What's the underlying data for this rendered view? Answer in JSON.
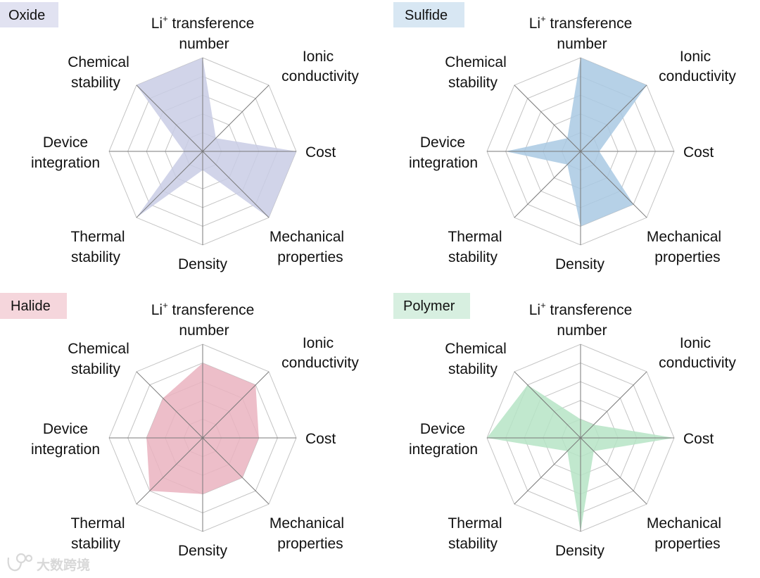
{
  "chart_data": [
    {
      "type": "radar",
      "title": "Oxide",
      "title_bg": "#e1e2f1",
      "fill": "#c9cce5",
      "axes": [
        "Li+ transference number",
        "Ionic conductivity",
        "Cost",
        "Mechanical properties",
        "Density",
        "Thermal stability",
        "Device integration",
        "Chemical stability"
      ],
      "values": [
        5,
        1,
        5,
        5,
        1,
        5,
        1,
        5
      ],
      "range": [
        0,
        5
      ]
    },
    {
      "type": "radar",
      "title": "Sulfide",
      "title_bg": "#d8e7f3",
      "fill": "#a9c9e3",
      "axes": [
        "Li+ transference number",
        "Ionic conductivity",
        "Cost",
        "Mechanical properties",
        "Density",
        "Thermal stability",
        "Device integration",
        "Chemical stability"
      ],
      "values": [
        5,
        5,
        1,
        4,
        4,
        1,
        4,
        1
      ],
      "range": [
        0,
        5
      ]
    },
    {
      "type": "radar",
      "title": "Halide",
      "title_bg": "#f5d6dc",
      "fill": "#eab3bf",
      "axes": [
        "Li+ transference number",
        "Ionic conductivity",
        "Cost",
        "Mechanical properties",
        "Density",
        "Thermal stability",
        "Device integration",
        "Chemical stability"
      ],
      "values": [
        4,
        4,
        3,
        3,
        3,
        4,
        3,
        3
      ],
      "range": [
        0,
        5
      ]
    },
    {
      "type": "radar",
      "title": "Polymer",
      "title_bg": "#d7efe0",
      "fill": "#b6e4c5",
      "axes": [
        "Li+ transference number",
        "Ionic conductivity",
        "Cost",
        "Mechanical properties",
        "Density",
        "Thermal stability",
        "Device integration",
        "Chemical stability"
      ],
      "values": [
        1,
        1,
        5,
        1,
        5,
        1,
        5,
        4
      ],
      "range": [
        0,
        5
      ]
    }
  ],
  "axis_labels": {
    "li": {
      "prefix": "Li",
      "sup": "+",
      "suffix": " transference",
      "line2": "number"
    },
    "ionic": [
      "Ionic",
      "conductivity"
    ],
    "cost": [
      "Cost"
    ],
    "mechanical": [
      "Mechanical",
      "properties"
    ],
    "density": [
      "Density"
    ],
    "thermal": [
      "Thermal",
      "stability"
    ],
    "device": [
      "Device",
      "integration"
    ],
    "chemical": [
      "Chemical",
      "stability"
    ]
  },
  "watermark": "大数跨境"
}
